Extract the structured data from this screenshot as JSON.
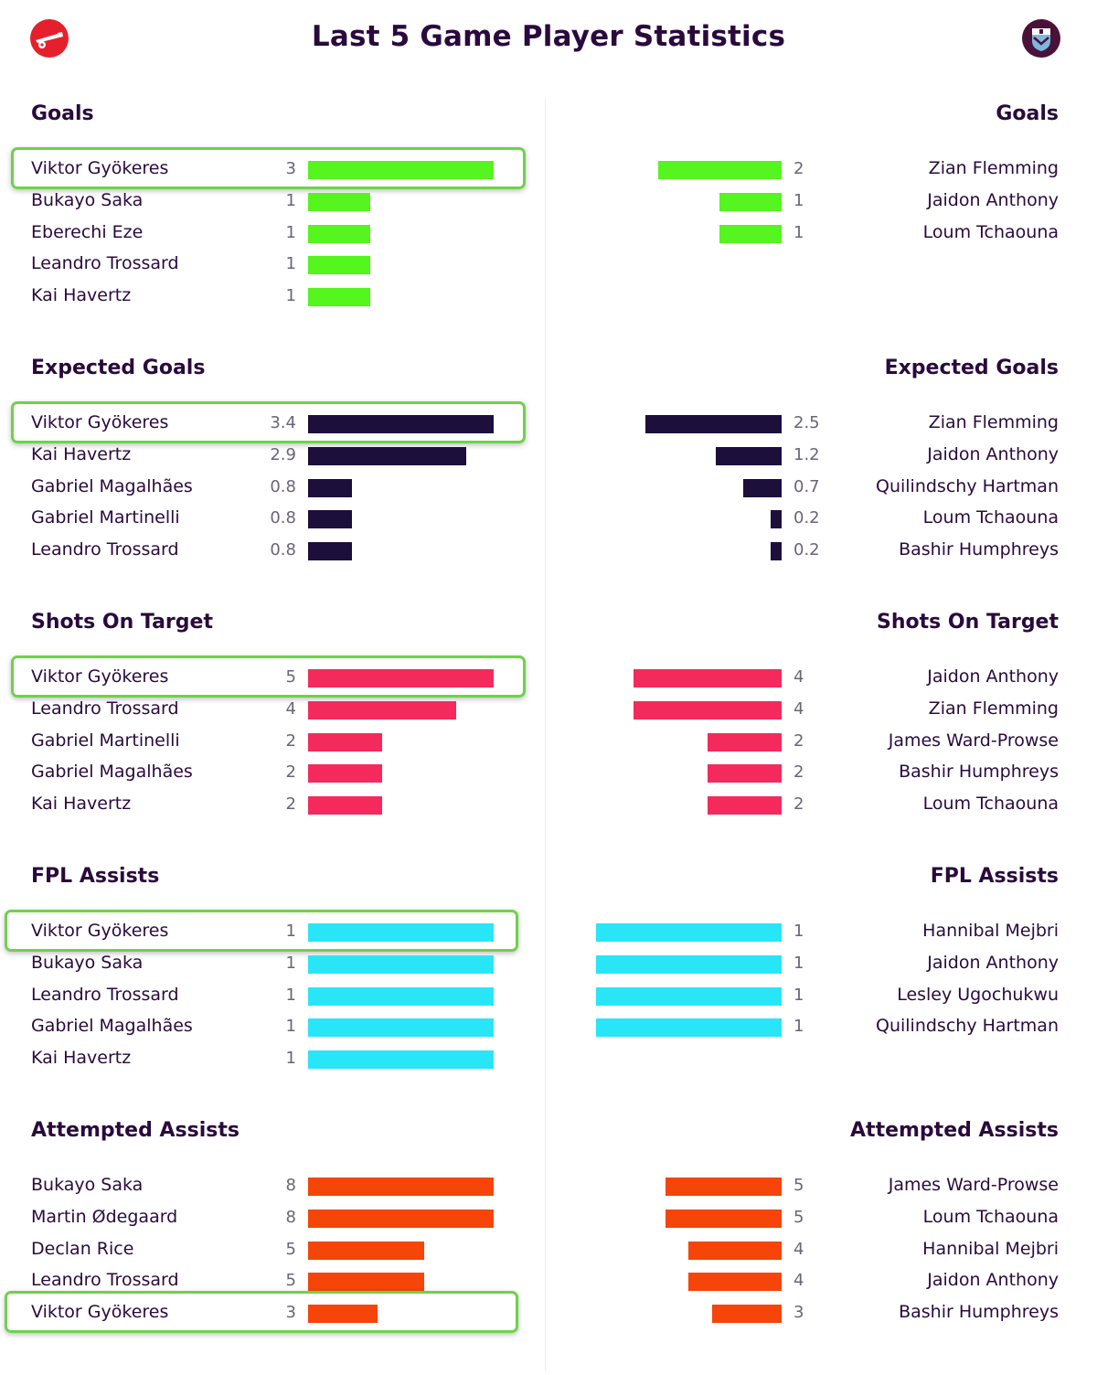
{
  "page": {
    "title": "Last 5 Game Player Statistics",
    "left_badge_icon": "arsenal-cannon-icon",
    "right_badge_icon": "burnley-crest-icon"
  },
  "chart_data": [
    {
      "type": "bar",
      "title": "Goals",
      "color": "#55f51e",
      "max": 3,
      "left": {
        "rows": [
          {
            "name": "Viktor Gyökeres",
            "value": 3,
            "label": "3",
            "highlight": true
          },
          {
            "name": "Bukayo Saka",
            "value": 1,
            "label": "1"
          },
          {
            "name": "Eberechi Eze",
            "value": 1,
            "label": "1"
          },
          {
            "name": "Leandro Trossard",
            "value": 1,
            "label": "1"
          },
          {
            "name": "Kai Havertz",
            "value": 1,
            "label": "1"
          }
        ]
      },
      "right": {
        "rows": [
          {
            "name": "Zian Flemming",
            "value": 2,
            "label": "2"
          },
          {
            "name": "Jaidon Anthony",
            "value": 1,
            "label": "1"
          },
          {
            "name": "Loum Tchaouna",
            "value": 1,
            "label": "1"
          }
        ]
      }
    },
    {
      "type": "bar",
      "title": "Expected Goals",
      "color": "#1d0f3b",
      "max": 3.4,
      "left": {
        "rows": [
          {
            "name": "Viktor Gyökeres",
            "value": 3.4,
            "label": "3.4",
            "highlight": true
          },
          {
            "name": "Kai Havertz",
            "value": 2.9,
            "label": "2.9"
          },
          {
            "name": "Gabriel Magalhães",
            "value": 0.8,
            "label": "0.8"
          },
          {
            "name": "Gabriel Martinelli",
            "value": 0.8,
            "label": "0.8"
          },
          {
            "name": "Leandro Trossard",
            "value": 0.8,
            "label": "0.8"
          }
        ]
      },
      "right": {
        "rows": [
          {
            "name": "Zian Flemming",
            "value": 2.5,
            "label": "2.5"
          },
          {
            "name": "Jaidon Anthony",
            "value": 1.2,
            "label": "1.2"
          },
          {
            "name": "Quilindschy Hartman",
            "value": 0.7,
            "label": "0.7"
          },
          {
            "name": "Loum Tchaouna",
            "value": 0.2,
            "label": "0.2"
          },
          {
            "name": "Bashir Humphreys",
            "value": 0.2,
            "label": "0.2"
          }
        ]
      }
    },
    {
      "type": "bar",
      "title": "Shots On Target",
      "color": "#f52a5c",
      "max": 5,
      "left": {
        "rows": [
          {
            "name": "Viktor Gyökeres",
            "value": 5,
            "label": "5",
            "highlight": true
          },
          {
            "name": "Leandro Trossard",
            "value": 4,
            "label": "4"
          },
          {
            "name": "Gabriel Martinelli",
            "value": 2,
            "label": "2"
          },
          {
            "name": "Gabriel Magalhães",
            "value": 2,
            "label": "2"
          },
          {
            "name": "Kai Havertz",
            "value": 2,
            "label": "2"
          }
        ]
      },
      "right": {
        "rows": [
          {
            "name": "Jaidon Anthony",
            "value": 4,
            "label": "4"
          },
          {
            "name": "Zian Flemming",
            "value": 4,
            "label": "4"
          },
          {
            "name": "James Ward-Prowse",
            "value": 2,
            "label": "2"
          },
          {
            "name": "Bashir Humphreys",
            "value": 2,
            "label": "2"
          },
          {
            "name": "Loum Tchaouna",
            "value": 2,
            "label": "2"
          }
        ]
      }
    },
    {
      "type": "bar",
      "title": "FPL Assists",
      "color": "#28e6f7",
      "max": 1,
      "left": {
        "rows": [
          {
            "name": "Viktor Gyökeres",
            "value": 1,
            "label": "1",
            "highlight": true
          },
          {
            "name": "Bukayo Saka",
            "value": 1,
            "label": "1"
          },
          {
            "name": "Leandro Trossard",
            "value": 1,
            "label": "1"
          },
          {
            "name": "Gabriel Magalhães",
            "value": 1,
            "label": "1"
          },
          {
            "name": "Kai Havertz",
            "value": 1,
            "label": "1"
          }
        ]
      },
      "right": {
        "rows": [
          {
            "name": "Hannibal Mejbri",
            "value": 1,
            "label": "1"
          },
          {
            "name": "Jaidon Anthony",
            "value": 1,
            "label": "1"
          },
          {
            "name": "Lesley Ugochukwu",
            "value": 1,
            "label": "1"
          },
          {
            "name": "Quilindschy Hartman",
            "value": 1,
            "label": "1"
          }
        ]
      }
    },
    {
      "type": "bar",
      "title": "Attempted Assists",
      "color": "#f54508",
      "max": 8,
      "left": {
        "rows": [
          {
            "name": "Bukayo Saka",
            "value": 8,
            "label": "8"
          },
          {
            "name": "Martin Ødegaard",
            "value": 8,
            "label": "8"
          },
          {
            "name": "Declan Rice",
            "value": 5,
            "label": "5"
          },
          {
            "name": "Leandro Trossard",
            "value": 5,
            "label": "5"
          },
          {
            "name": "Viktor Gyökeres",
            "value": 3,
            "label": "3",
            "highlight": true
          }
        ]
      },
      "right": {
        "rows": [
          {
            "name": "James Ward-Prowse",
            "value": 5,
            "label": "5"
          },
          {
            "name": "Loum Tchaouna",
            "value": 5,
            "label": "5"
          },
          {
            "name": "Hannibal Mejbri",
            "value": 4,
            "label": "4"
          },
          {
            "name": "Jaidon Anthony",
            "value": 4,
            "label": "4"
          },
          {
            "name": "Bashir Humphreys",
            "value": 3,
            "label": "3"
          }
        ]
      }
    }
  ]
}
